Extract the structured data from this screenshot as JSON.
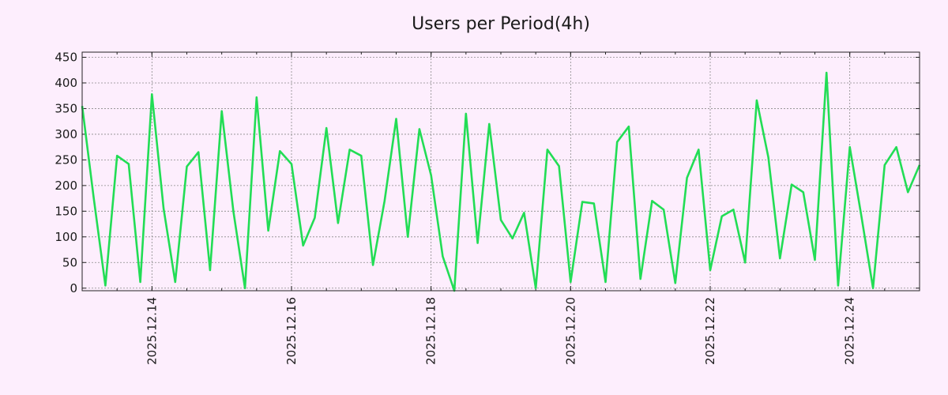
{
  "chart_data": {
    "type": "line",
    "title": "Users per Period(4h)",
    "xlabel": "",
    "ylabel": "",
    "ylim": [
      -5,
      460
    ],
    "yticks": [
      0,
      50,
      100,
      150,
      200,
      250,
      300,
      350,
      400,
      450
    ],
    "xlim": [
      "2025-12-13 00:00",
      "2025-12-25 00:00"
    ],
    "xticks": [
      "2025.12.14",
      "2025.12.16",
      "2025.12.18",
      "2025.12.20",
      "2025.12.22",
      "2025.12.24"
    ],
    "grid": true,
    "line_color": "#22dd55",
    "background": "#fdeefd",
    "series": [
      {
        "x": [
          "2025-12-13 00:00",
          "2025-12-13 04:00",
          "2025-12-13 08:00",
          "2025-12-13 12:00",
          "2025-12-13 16:00",
          "2025-12-13 20:00",
          "2025-12-14 00:00",
          "2025-12-14 04:00",
          "2025-12-14 08:00",
          "2025-12-14 12:00",
          "2025-12-14 16:00",
          "2025-12-14 20:00",
          "2025-12-15 00:00",
          "2025-12-15 04:00",
          "2025-12-15 08:00",
          "2025-12-15 12:00",
          "2025-12-15 16:00",
          "2025-12-15 20:00",
          "2025-12-16 00:00",
          "2025-12-16 04:00",
          "2025-12-16 08:00",
          "2025-12-16 12:00",
          "2025-12-16 16:00",
          "2025-12-16 20:00",
          "2025-12-17 00:00",
          "2025-12-17 04:00",
          "2025-12-17 08:00",
          "2025-12-17 12:00",
          "2025-12-17 16:00",
          "2025-12-17 20:00",
          "2025-12-18 00:00",
          "2025-12-18 04:00",
          "2025-12-18 08:00",
          "2025-12-18 12:00",
          "2025-12-18 16:00",
          "2025-12-18 20:00",
          "2025-12-19 00:00",
          "2025-12-19 04:00",
          "2025-12-19 08:00",
          "2025-12-19 12:00",
          "2025-12-19 16:00",
          "2025-12-19 20:00",
          "2025-12-20 00:00",
          "2025-12-20 04:00",
          "2025-12-20 08:00",
          "2025-12-20 12:00",
          "2025-12-20 16:00",
          "2025-12-20 20:00",
          "2025-12-21 00:00",
          "2025-12-21 04:00",
          "2025-12-21 08:00",
          "2025-12-21 12:00",
          "2025-12-21 16:00",
          "2025-12-21 20:00",
          "2025-12-22 00:00",
          "2025-12-22 04:00",
          "2025-12-22 08:00",
          "2025-12-22 12:00",
          "2025-12-22 16:00",
          "2025-12-22 20:00",
          "2025-12-23 00:00",
          "2025-12-23 04:00",
          "2025-12-23 08:00",
          "2025-12-23 12:00",
          "2025-12-23 16:00",
          "2025-12-23 20:00",
          "2025-12-24 00:00",
          "2025-12-24 04:00",
          "2025-12-24 08:00",
          "2025-12-24 12:00",
          "2025-12-24 16:00",
          "2025-12-24 20:00",
          "2025-12-25 00:00"
        ],
        "values": [
          355,
          175,
          5,
          258,
          242,
          12,
          378,
          155,
          12,
          237,
          265,
          35,
          345,
          150,
          0,
          372,
          112,
          267,
          242,
          83,
          137,
          312,
          127,
          270,
          258,
          45,
          170,
          330,
          100,
          310,
          220,
          62,
          -5,
          340,
          88,
          320,
          133,
          97,
          147,
          0,
          270,
          238,
          12,
          168,
          165,
          12,
          285,
          315,
          18,
          170,
          153,
          10,
          215,
          270,
          35,
          140,
          153,
          50,
          366,
          255,
          58,
          202,
          187,
          55,
          420,
          5,
          275,
          140,
          0,
          240,
          275,
          187,
          240
        ]
      }
    ]
  }
}
